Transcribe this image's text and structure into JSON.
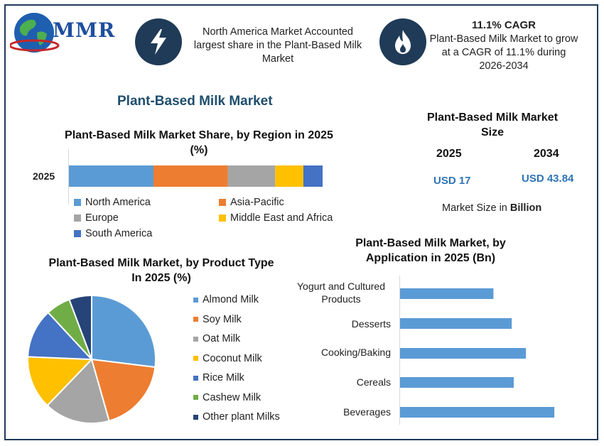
{
  "header": {
    "logo_text": "MMR",
    "info1_text": "North America Market Accounted largest share in the Plant-Based Milk Market",
    "info2_title": "11.1% CAGR",
    "info2_text": "Plant-Based Milk Market to grow at a CAGR of 11.1% during 2026-2034",
    "icons": [
      "lightning-icon",
      "flame-icon"
    ],
    "accent": "#1f3b57"
  },
  "page_title": "Plant-Based Milk Market",
  "market_size": {
    "title": "Plant-Based Milk Market Size",
    "year1": "2025",
    "year2": "2034",
    "value1": "USD 17",
    "value2": "USD 43.84",
    "unit_prefix": "Market Size in ",
    "unit_bold": "Billion"
  },
  "chart_data": [
    {
      "type": "bar",
      "orientation": "horizontal-stacked",
      "title": "Plant-Based Milk Market Share, by Region in 2025 (%)",
      "categories": [
        "2025"
      ],
      "series": [
        {
          "name": "North America",
          "values": [
            33
          ],
          "color": "#5b9bd5"
        },
        {
          "name": "Asia-Pacific",
          "values": [
            29
          ],
          "color": "#ed7d31"
        },
        {
          "name": "Europe",
          "values": [
            18.5
          ],
          "color": "#a5a5a5"
        },
        {
          "name": "Middle East and Africa",
          "values": [
            11
          ],
          "color": "#ffc000"
        },
        {
          "name": "South America",
          "values": [
            7.5
          ],
          "color": "#4472c4"
        }
      ],
      "legend": "bottom"
    },
    {
      "type": "pie",
      "title": "Plant-Based Milk Market, by Product Type In 2025 (%)",
      "categories": [
        "Almond Milk",
        "Soy Milk",
        "Oat Milk",
        "Coconut Milk",
        "Rice Milk",
        "Cashew Milk",
        "Other plant Milks"
      ],
      "values": [
        26,
        18,
        16,
        13,
        12,
        6,
        5.5
      ],
      "colors": [
        "#5b9bd5",
        "#ed7d31",
        "#a5a5a5",
        "#ffc000",
        "#4472c4",
        "#70ad47",
        "#264478"
      ],
      "legend": "right"
    },
    {
      "type": "bar",
      "orientation": "horizontal",
      "title": "Plant-Based Milk Market, by Application in 2025 (Bn)",
      "categories": [
        "Yogurt and Cultured Products",
        "Desserts",
        "Cooking/Baking",
        "Cereals",
        "Beverages"
      ],
      "values": [
        2.3,
        2.75,
        3.1,
        2.8,
        3.8
      ],
      "color": "#5b9bd5",
      "xlim": [
        0,
        4.2
      ]
    }
  ]
}
